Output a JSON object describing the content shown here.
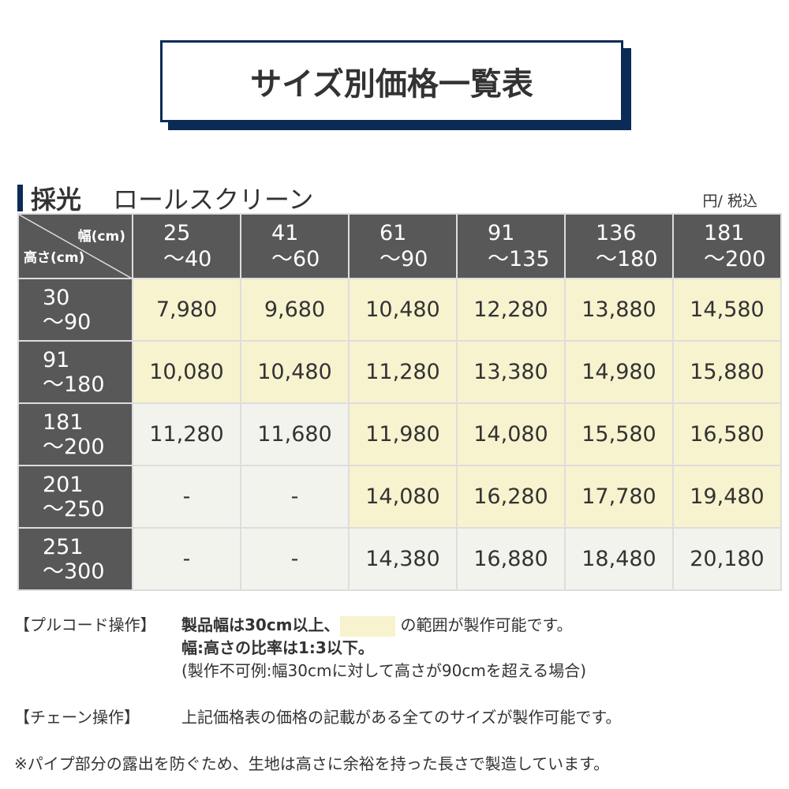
{
  "title": "サイズ別価格一覧表",
  "section": {
    "bold": "採光",
    "name": "ロールスクリーン",
    "unit": "円/ 税込"
  },
  "table": {
    "corner_width": "幅(cm)",
    "corner_height": "高さ(cm)",
    "width_headers": [
      [
        "25",
        "～40"
      ],
      [
        "41",
        "～60"
      ],
      [
        "61",
        "～90"
      ],
      [
        "91",
        "～135"
      ],
      [
        "136",
        "～180"
      ],
      [
        "181",
        "～200"
      ]
    ],
    "rows": [
      {
        "height": [
          "30",
          "～90"
        ],
        "prices": [
          "7,980",
          "9,680",
          "10,480",
          "12,280",
          "13,880",
          "14,580"
        ],
        "pullcord_ok": [
          true,
          true,
          true,
          true,
          true,
          true
        ]
      },
      {
        "height": [
          "91",
          "～180"
        ],
        "prices": [
          "10,080",
          "10,480",
          "11,280",
          "13,380",
          "14,980",
          "15,880"
        ],
        "pullcord_ok": [
          true,
          true,
          true,
          true,
          true,
          true
        ]
      },
      {
        "height": [
          "181",
          "～200"
        ],
        "prices": [
          "11,280",
          "11,680",
          "11,980",
          "14,080",
          "15,580",
          "16,580"
        ],
        "pullcord_ok": [
          false,
          false,
          true,
          true,
          true,
          true
        ]
      },
      {
        "height": [
          "201",
          "～250"
        ],
        "prices": [
          "-",
          "-",
          "14,080",
          "16,280",
          "17,780",
          "19,480"
        ],
        "pullcord_ok": [
          false,
          false,
          true,
          true,
          true,
          true
        ]
      },
      {
        "height": [
          "251",
          "～300"
        ],
        "prices": [
          "-",
          "-",
          "14,380",
          "16,880",
          "18,480",
          "20,180"
        ],
        "pullcord_ok": [
          false,
          false,
          false,
          false,
          false,
          false
        ]
      }
    ]
  },
  "colors": {
    "navy": "#0b2a55",
    "header": "#585858",
    "available": "#f7f3cf",
    "unavailable": "#f3f3ee"
  },
  "notes": {
    "pullcord_label": "【プルコード操作】",
    "pullcord_line1a": "製品幅は30cm以上、",
    "pullcord_line1b": "の範囲が製作可能です。",
    "pullcord_line2": "幅:高さの比率は1:3以下。",
    "pullcord_line3": "(製作不可例:幅30cmに対して高さが90cmを超える場合)",
    "chain_label": "【チェーン操作】",
    "chain_text": "上記価格表の価格の記載がある全てのサイズが製作可能です。",
    "footnote": "※パイプ部分の露出を防ぐため、生地は高さに余裕を持った長さで製造しています。"
  }
}
